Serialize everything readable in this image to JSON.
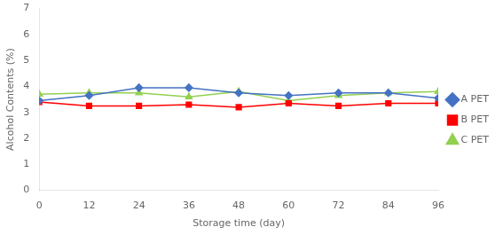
{
  "chart_data": {
    "type": "line",
    "x": [
      0,
      12,
      24,
      36,
      48,
      60,
      72,
      84,
      96
    ],
    "series": [
      {
        "name": "A PET",
        "color": "#4472C4",
        "marker": "diamond",
        "values": [
          3.45,
          3.65,
          3.95,
          3.95,
          3.75,
          3.65,
          3.75,
          3.75,
          3.55
        ]
      },
      {
        "name": "B PET",
        "color": "#FF0000",
        "marker": "square",
        "values": [
          3.4,
          3.25,
          3.25,
          3.3,
          3.2,
          3.35,
          3.25,
          3.35,
          3.35
        ]
      },
      {
        "name": "C PET",
        "color": "#92D050",
        "marker": "triangle",
        "values": [
          3.7,
          3.75,
          3.75,
          3.6,
          3.8,
          3.45,
          3.65,
          3.75,
          3.8
        ]
      }
    ],
    "xlabel": "Storage time (day)",
    "ylabel": "Alcohol Contents (%)",
    "xlim": [
      0,
      96
    ],
    "xticks": [
      0,
      12,
      24,
      36,
      48,
      60,
      72,
      84,
      96
    ],
    "ylim": [
      0,
      7
    ],
    "yticks": [
      0,
      1,
      2,
      3,
      4,
      5,
      6,
      7
    ],
    "grid": false,
    "legend": "right"
  }
}
